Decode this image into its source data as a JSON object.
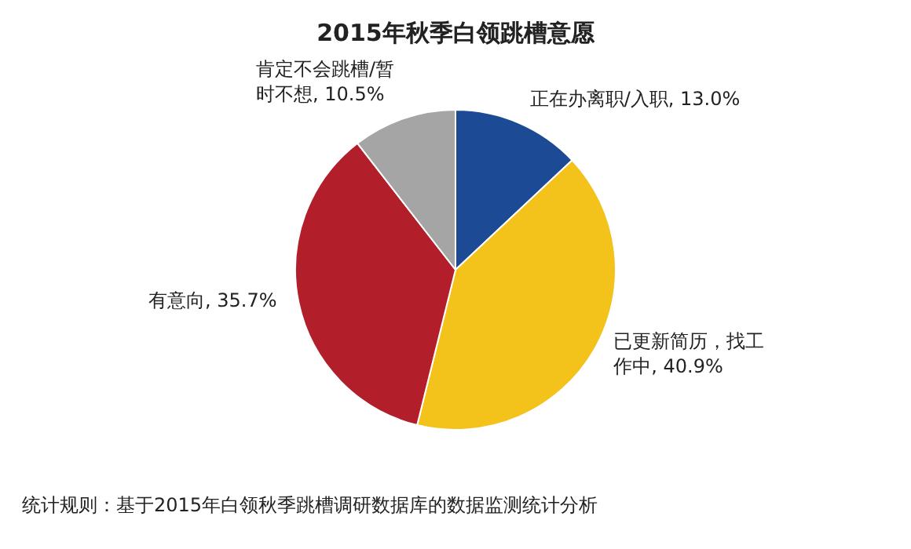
{
  "chart_data": {
    "type": "pie",
    "title": "2015年秋季白领跳槽意愿",
    "categories": [
      "正在办离职/入职",
      "已更新简历，找工作中",
      "有意向",
      "肯定不会跳槽/暂时不想"
    ],
    "values": [
      13.0,
      40.9,
      35.7,
      10.5
    ],
    "colors": [
      "#1d4a94",
      "#f3c21b",
      "#b21f2b",
      "#a5a5a5"
    ],
    "value_labels": [
      ", 13.0%",
      ", 40.9%",
      ", 35.7%",
      ", 10.5%"
    ],
    "annotations": [
      "统计规则：基于2015年白领秋季跳槽调研数据库的数据监测统计分析"
    ]
  }
}
